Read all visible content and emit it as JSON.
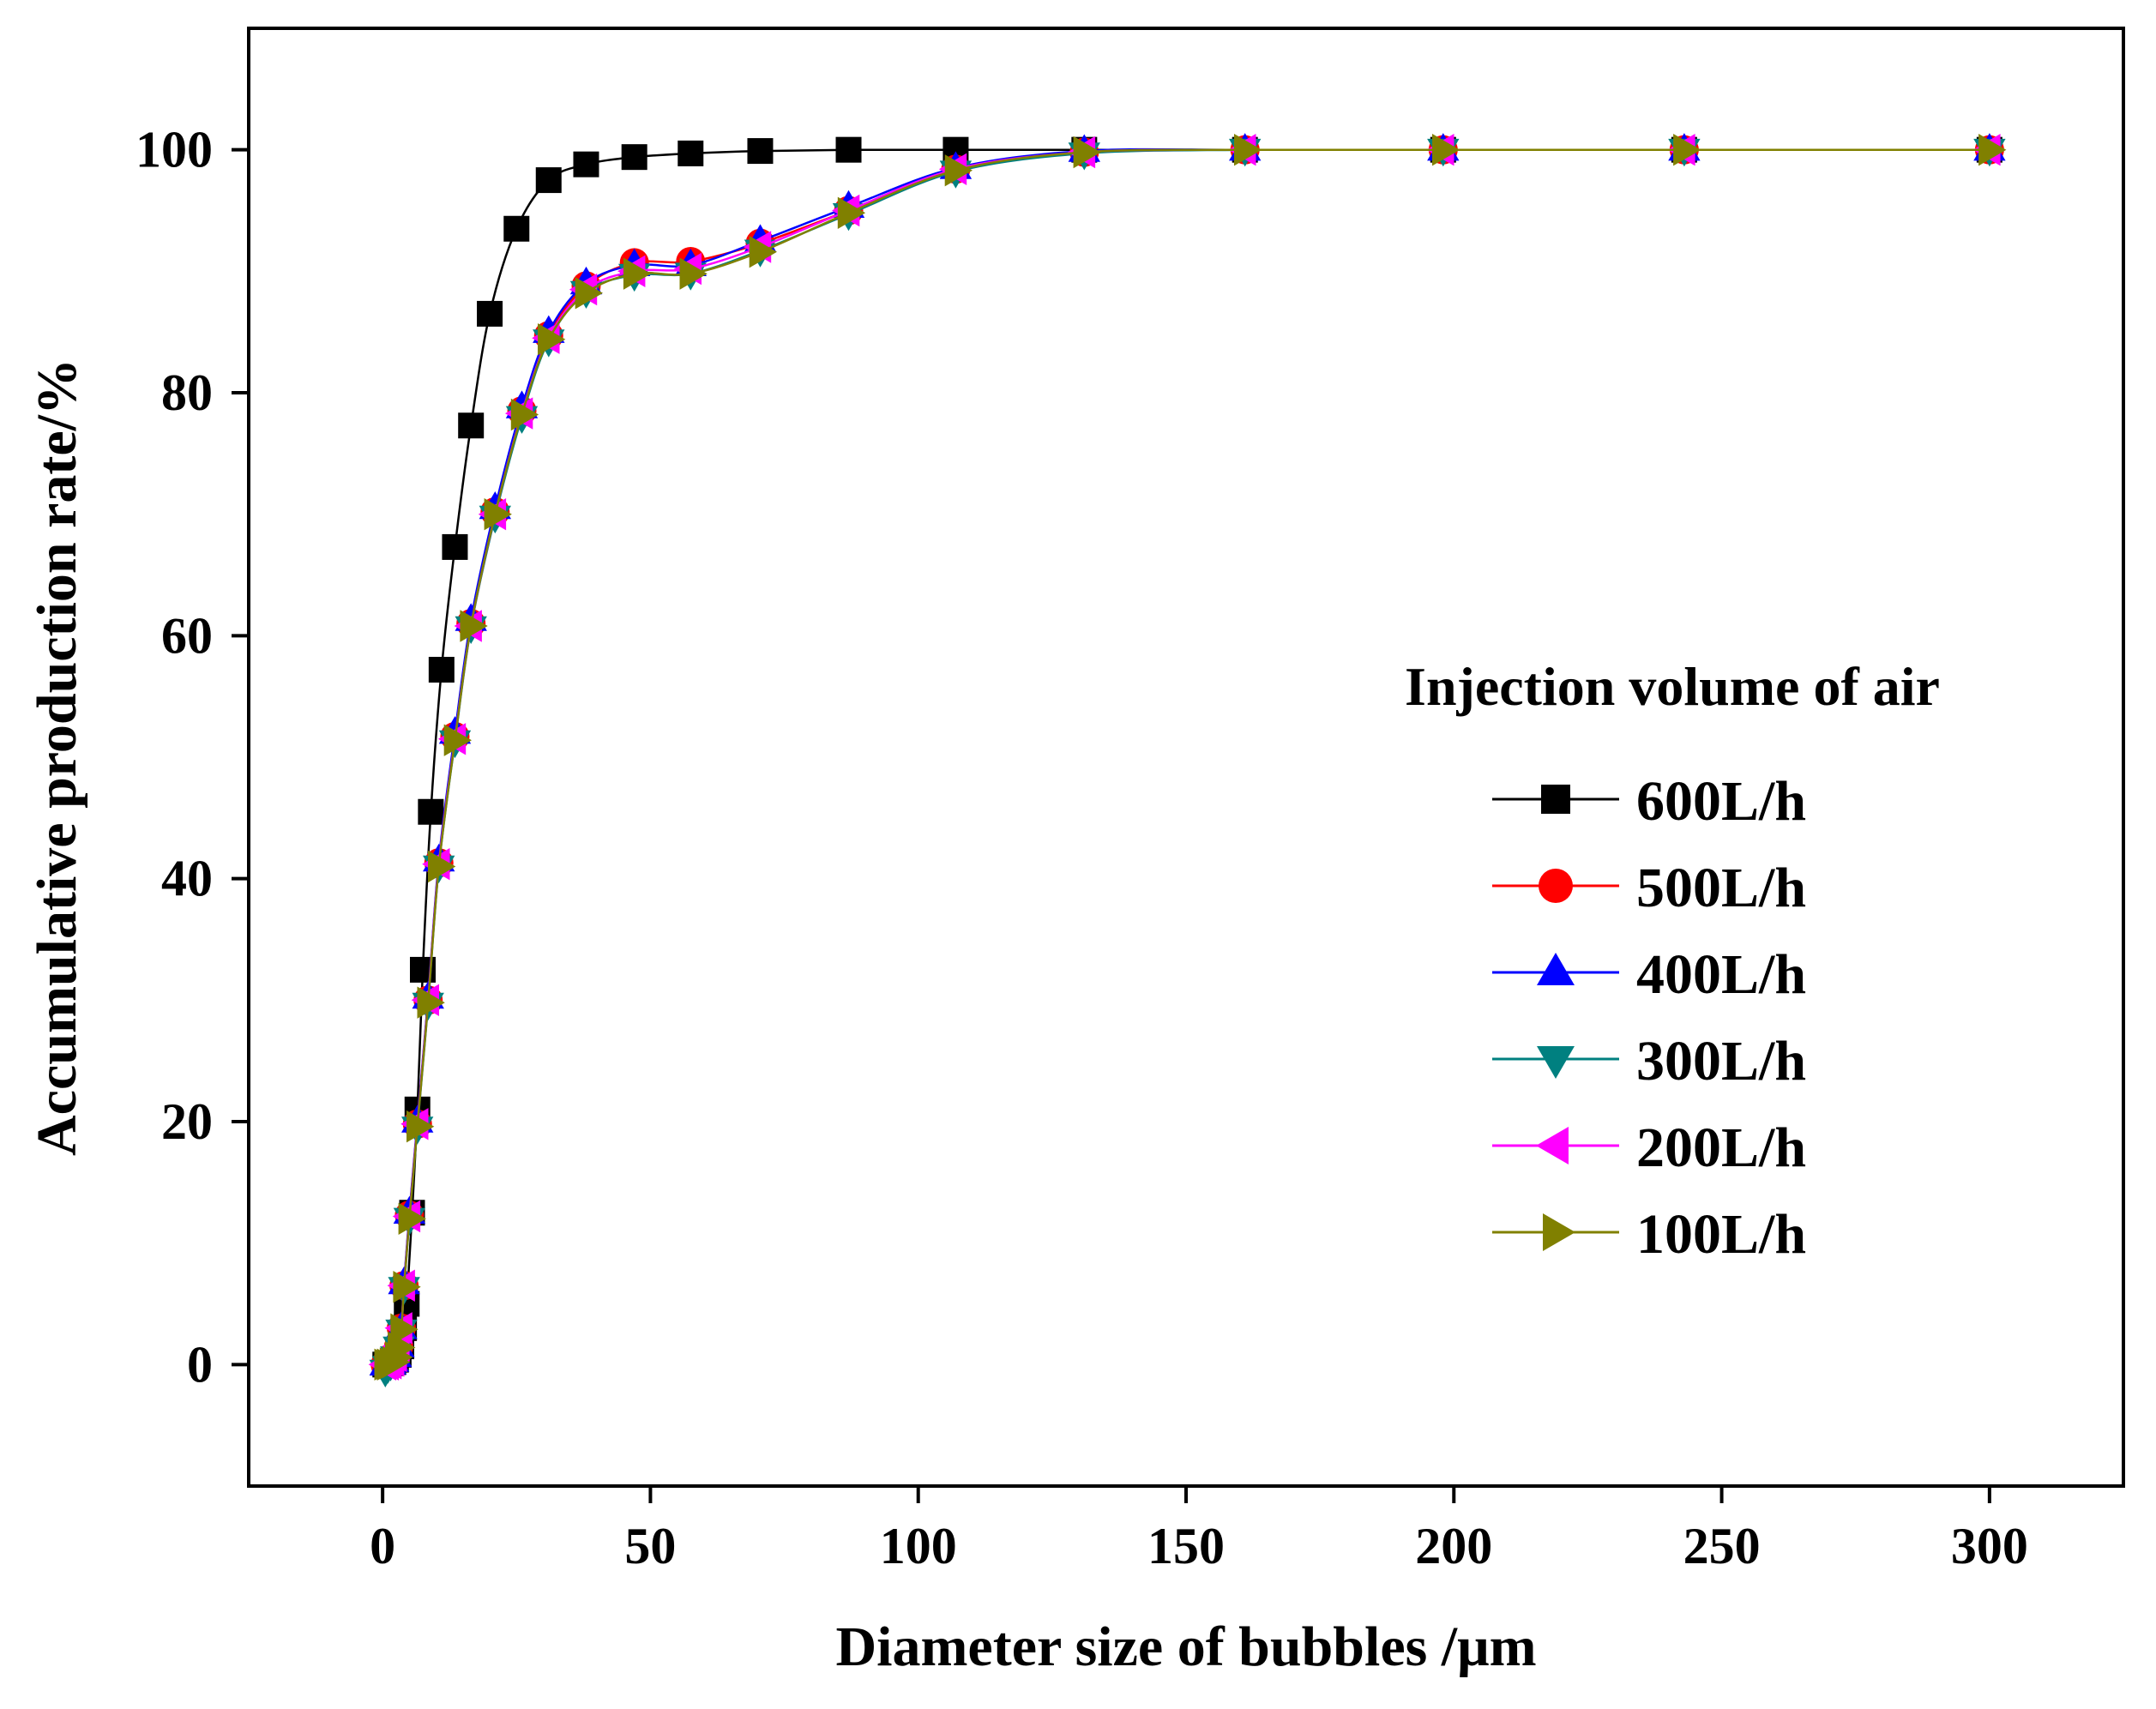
{
  "chart_data": {
    "type": "line",
    "title": "",
    "xlabel": "Diameter size of bubbles /μm",
    "ylabel": "Accumulative production rate/%",
    "xlim": [
      -25,
      325
    ],
    "ylim": [
      -10,
      110
    ],
    "xticks": [
      0,
      50,
      100,
      150,
      200,
      250,
      300
    ],
    "yticks": [
      0,
      20,
      40,
      60,
      80,
      100
    ],
    "grid": false,
    "legend": {
      "title": "Injection volume of air",
      "position": "right-middle"
    },
    "series": [
      {
        "name": "600L/h",
        "color": "#000000",
        "marker": "square",
        "x": [
          0.5,
          1,
          1.5,
          2,
          2.5,
          3,
          3.5,
          4,
          4.5,
          5.5,
          6.5,
          7.5,
          9,
          11,
          13.5,
          16.5,
          20,
          25,
          31,
          38,
          47,
          57.5,
          70.5,
          87,
          107,
          131,
          161,
          198,
          243,
          300
        ],
        "y": [
          0,
          0,
          0.1,
          0.2,
          0.4,
          0.8,
          1.5,
          3,
          5,
          12.5,
          21,
          32.5,
          45.5,
          57.2,
          67.3,
          77.3,
          86.5,
          93.5,
          97.5,
          98.8,
          99.4,
          99.7,
          99.9,
          100,
          100,
          100,
          100,
          100,
          100,
          100
        ]
      },
      {
        "name": "500L/h",
        "color": "#ff0000",
        "marker": "circle",
        "x": [
          0.5,
          1,
          1.5,
          2,
          2.5,
          3,
          3.5,
          4,
          5,
          6.5,
          8.5,
          10.5,
          13.5,
          16.5,
          21,
          26,
          31,
          38,
          47,
          57.5,
          70.5,
          87,
          107,
          131,
          161,
          198,
          243,
          300
        ],
        "y": [
          0,
          0,
          0.1,
          0.3,
          0.7,
          1.5,
          3,
          6.5,
          12.3,
          19.8,
          30,
          41.3,
          51.7,
          61,
          70.2,
          78.5,
          84.7,
          88.8,
          90.7,
          90.8,
          92.3,
          95,
          98.4,
          99.8,
          100,
          100,
          100,
          100
        ]
      },
      {
        "name": "400L/h",
        "color": "#0000ff",
        "marker": "triangle-up",
        "x": [
          0.5,
          1,
          1.5,
          2,
          2.5,
          3,
          3.5,
          4,
          5,
          6.5,
          8.5,
          10.5,
          13.5,
          16.5,
          21,
          26,
          31,
          38,
          47,
          57.5,
          70.5,
          87,
          107,
          131,
          161,
          198,
          243,
          300
        ],
        "y": [
          0,
          0,
          0.1,
          0.3,
          0.7,
          1.5,
          3,
          6.7,
          12.5,
          20,
          30.2,
          41.5,
          52,
          61.3,
          70.5,
          78.8,
          85,
          89,
          90.5,
          90.5,
          92.5,
          95.3,
          98.5,
          99.9,
          100,
          100,
          100,
          100
        ]
      },
      {
        "name": "300L/h",
        "color": "#008080",
        "marker": "triangle-down",
        "x": [
          0.5,
          1,
          1.5,
          2,
          2.5,
          3,
          3.5,
          4,
          5,
          6.5,
          8.5,
          10.5,
          13.5,
          16.5,
          21,
          26,
          31,
          38,
          47,
          57.5,
          70.5,
          87,
          107,
          131,
          161,
          198,
          243,
          300
        ],
        "y": [
          -0.5,
          -0.2,
          0,
          0.2,
          0.6,
          1.4,
          2.8,
          6.3,
          12,
          19.5,
          29.7,
          41,
          51.3,
          60.7,
          69.8,
          78,
          84.3,
          88.3,
          89.7,
          89.8,
          91.7,
          94.7,
          98.2,
          99.7,
          100,
          100,
          100,
          100
        ]
      },
      {
        "name": "200L/h",
        "color": "#ff00ff",
        "marker": "triangle-left",
        "x": [
          0.5,
          1,
          1.5,
          2,
          2.5,
          3,
          3.5,
          4,
          5,
          6.5,
          8.5,
          10.5,
          13.5,
          16.5,
          21,
          26,
          31,
          38,
          47,
          57.5,
          70.5,
          87,
          107,
          131,
          161,
          198,
          243,
          300
        ],
        "y": [
          0,
          0,
          0.1,
          0.3,
          0.7,
          1.5,
          3,
          6.5,
          12.2,
          19.8,
          30,
          41.2,
          51.5,
          60.8,
          70,
          78.3,
          84.5,
          88.5,
          90,
          90.2,
          92,
          95,
          98.4,
          99.8,
          100,
          100,
          100,
          100
        ]
      },
      {
        "name": "100L/h",
        "color": "#808000",
        "marker": "triangle-right",
        "x": [
          0.5,
          1,
          1.5,
          2,
          2.5,
          3,
          3.5,
          4,
          5,
          6.5,
          8.5,
          10.5,
          13.5,
          16.5,
          21,
          26,
          31,
          38,
          47,
          57.5,
          70.5,
          87,
          107,
          131,
          161,
          198,
          243,
          300
        ],
        "y": [
          0,
          0,
          0.1,
          0.2,
          0.6,
          1.4,
          2.9,
          6.4,
          12,
          19.6,
          29.8,
          41,
          51.4,
          60.8,
          70,
          78.2,
          84.4,
          88.2,
          89.8,
          89.8,
          91.6,
          94.8,
          98.3,
          99.8,
          100,
          100,
          100,
          100
        ]
      }
    ]
  }
}
